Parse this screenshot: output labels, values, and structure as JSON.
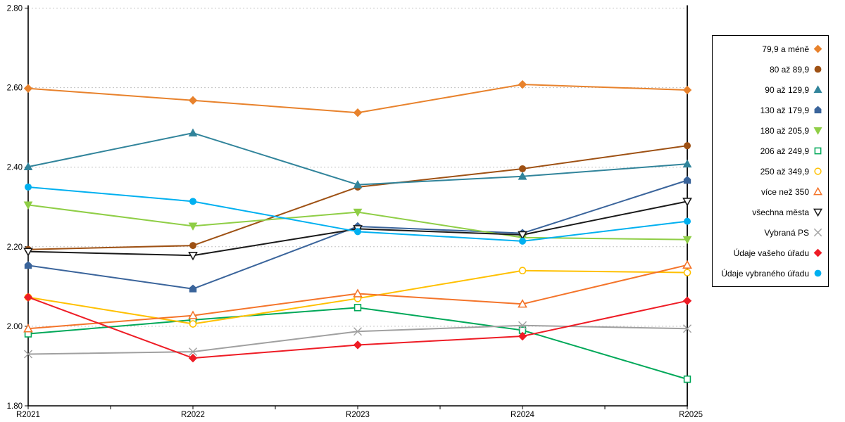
{
  "chart_data": {
    "type": "line",
    "title": "",
    "xlabel": "",
    "ylabel": "",
    "x_categories": [
      "R2021",
      "R2022",
      "R2023",
      "R2024",
      "R2025"
    ],
    "ylim": [
      1.8,
      2.8
    ],
    "y_tick_step": 0.2,
    "y_tick_labels": [
      "2.80",
      "2.60",
      "2.40",
      "2.20",
      "2.00",
      "1.80"
    ],
    "grid": "horizontal-dashed",
    "legend_position": "right",
    "colors": {
      "grid": "#C3C3C3",
      "axis": "#000000",
      "background": "#FFFFFF"
    },
    "series": [
      {
        "name": "79,9 a méně",
        "color": "#E8822C",
        "marker": "diamond",
        "fill": "solid",
        "values": [
          2.598,
          2.568,
          2.537,
          2.608,
          2.594
        ]
      },
      {
        "name": "80 až 89,9",
        "color": "#9E5114",
        "marker": "circle",
        "fill": "solid",
        "values": [
          2.193,
          2.203,
          2.35,
          2.396,
          2.454
        ]
      },
      {
        "name": "90 až 129,9",
        "color": "#31849B",
        "marker": "triangle-up",
        "fill": "solid",
        "values": [
          2.401,
          2.486,
          2.356,
          2.377,
          2.408
        ]
      },
      {
        "name": "130 až 179,9",
        "color": "#3A649B",
        "marker": "pentagon",
        "fill": "solid",
        "values": [
          2.153,
          2.094,
          2.251,
          2.234,
          2.367
        ]
      },
      {
        "name": "180 až 205,9",
        "color": "#8FCE46",
        "marker": "triangle-down",
        "fill": "solid",
        "values": [
          2.305,
          2.252,
          2.287,
          2.223,
          2.218
        ]
      },
      {
        "name": "206 až 249,9",
        "color": "#00A859",
        "marker": "square",
        "fill": "open",
        "values": [
          1.981,
          2.016,
          2.047,
          1.99,
          1.867
        ]
      },
      {
        "name": "250 až 349,9",
        "color": "#FFC000",
        "marker": "circle",
        "fill": "open",
        "values": [
          2.073,
          2.006,
          2.07,
          2.14,
          2.135
        ]
      },
      {
        "name": "více než 350",
        "color": "#F4742A",
        "marker": "triangle-up",
        "fill": "open",
        "values": [
          1.994,
          2.027,
          2.082,
          2.056,
          2.154
        ]
      },
      {
        "name": "všechna města",
        "color": "#1A1A1A",
        "marker": "triangle-down",
        "fill": "open",
        "values": [
          2.188,
          2.178,
          2.245,
          2.23,
          2.314
        ]
      },
      {
        "name": "Vybraná PS",
        "color": "#A0A0A0",
        "marker": "x",
        "fill": "open",
        "values": [
          1.93,
          1.936,
          1.987,
          2.002,
          1.994
        ]
      },
      {
        "name": "Údaje vašeho úřadu",
        "color": "#EE1C25",
        "marker": "diamond",
        "fill": "solid",
        "values": [
          2.073,
          1.92,
          1.953,
          1.975,
          2.064
        ]
      },
      {
        "name": "Údaje vybraného úřadu",
        "color": "#00B0F0",
        "marker": "circle",
        "fill": "solid",
        "values": [
          2.35,
          2.314,
          2.238,
          2.214,
          2.264
        ]
      }
    ]
  }
}
